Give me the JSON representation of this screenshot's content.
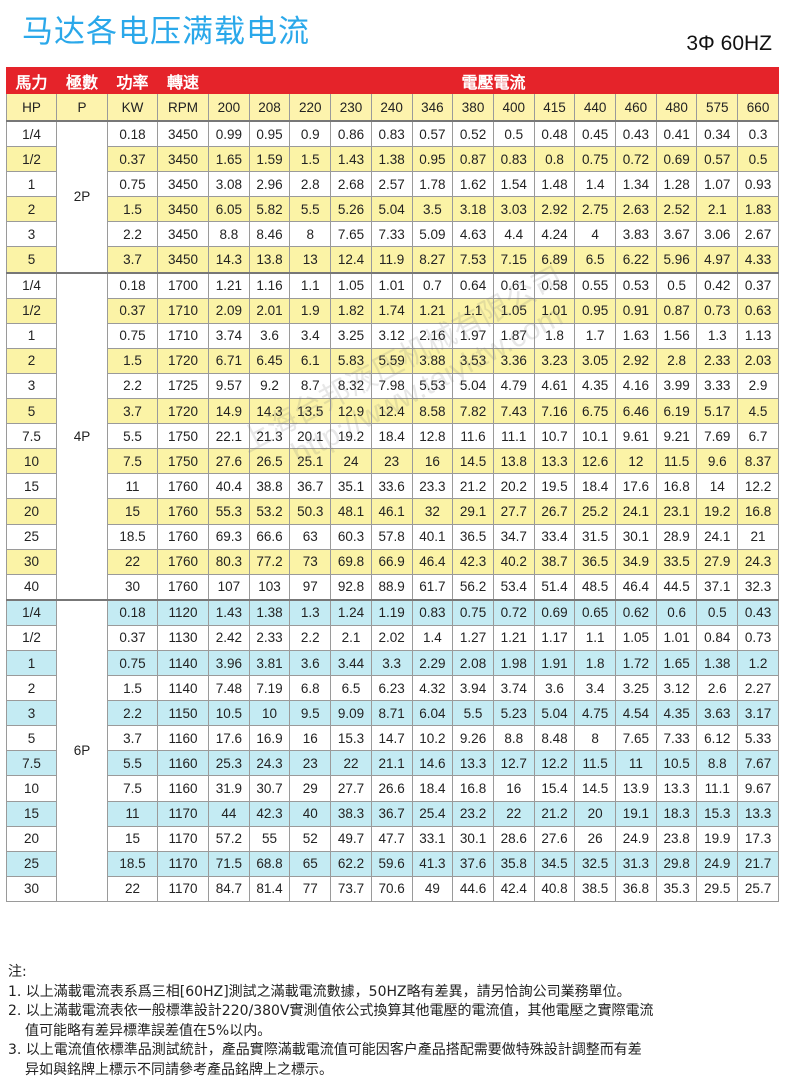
{
  "title": "马达各电压满载电流",
  "phase": "3Φ 60HZ",
  "colors": {
    "header_red": "#e5232a",
    "header_yellow": "#fdf3ad",
    "stripe_yellow": "#fbf3a6",
    "stripe_blue": "#c4ebf3",
    "title_blue": "#2aa8ea"
  },
  "header": {
    "hp": "馬力",
    "poles": "極數",
    "power": "功率",
    "speed": "轉速",
    "current": "電壓電流",
    "hp_unit": "HP",
    "poles_unit": "P",
    "power_unit": "KW",
    "speed_unit": "RPM",
    "voltages": [
      "200",
      "208",
      "220",
      "230",
      "240",
      "346",
      "380",
      "400",
      "415",
      "440",
      "460",
      "480",
      "575",
      "660"
    ]
  },
  "groups": [
    {
      "poles": "2P",
      "stripe_color": "#fbf3a6",
      "stripe_on": "odd",
      "rows": [
        [
          "1/4",
          "0.18",
          "3450",
          "0.99",
          "0.95",
          "0.9",
          "0.86",
          "0.83",
          "0.57",
          "0.52",
          "0.5",
          "0.48",
          "0.45",
          "0.43",
          "0.41",
          "0.34",
          "0.3"
        ],
        [
          "1/2",
          "0.37",
          "3450",
          "1.65",
          "1.59",
          "1.5",
          "1.43",
          "1.38",
          "0.95",
          "0.87",
          "0.83",
          "0.8",
          "0.75",
          "0.72",
          "0.69",
          "0.57",
          "0.5"
        ],
        [
          "1",
          "0.75",
          "3450",
          "3.08",
          "2.96",
          "2.8",
          "2.68",
          "2.57",
          "1.78",
          "1.62",
          "1.54",
          "1.48",
          "1.4",
          "1.34",
          "1.28",
          "1.07",
          "0.93"
        ],
        [
          "2",
          "1.5",
          "3450",
          "6.05",
          "5.82",
          "5.5",
          "5.26",
          "5.04",
          "3.5",
          "3.18",
          "3.03",
          "2.92",
          "2.75",
          "2.63",
          "2.52",
          "2.1",
          "1.83"
        ],
        [
          "3",
          "2.2",
          "3450",
          "8.8",
          "8.46",
          "8",
          "7.65",
          "7.33",
          "5.09",
          "4.63",
          "4.4",
          "4.24",
          "4",
          "3.83",
          "3.67",
          "3.06",
          "2.67"
        ],
        [
          "5",
          "3.7",
          "3450",
          "14.3",
          "13.8",
          "13",
          "12.4",
          "11.9",
          "8.27",
          "7.53",
          "7.15",
          "6.89",
          "6.5",
          "6.22",
          "5.96",
          "4.97",
          "4.33"
        ]
      ]
    },
    {
      "poles": "4P",
      "stripe_color": "#fbf3a6",
      "stripe_on": "odd",
      "rows": [
        [
          "1/4",
          "0.18",
          "1700",
          "1.21",
          "1.16",
          "1.1",
          "1.05",
          "1.01",
          "0.7",
          "0.64",
          "0.61",
          "0.58",
          "0.55",
          "0.53",
          "0.5",
          "0.42",
          "0.37"
        ],
        [
          "1/2",
          "0.37",
          "1710",
          "2.09",
          "2.01",
          "1.9",
          "1.82",
          "1.74",
          "1.21",
          "1.1",
          "1.05",
          "1.01",
          "0.95",
          "0.91",
          "0.87",
          "0.73",
          "0.63"
        ],
        [
          "1",
          "0.75",
          "1710",
          "3.74",
          "3.6",
          "3.4",
          "3.25",
          "3.12",
          "2.16",
          "1.97",
          "1.87",
          "1.8",
          "1.7",
          "1.63",
          "1.56",
          "1.3",
          "1.13"
        ],
        [
          "2",
          "1.5",
          "1720",
          "6.71",
          "6.45",
          "6.1",
          "5.83",
          "5.59",
          "3.88",
          "3.53",
          "3.36",
          "3.23",
          "3.05",
          "2.92",
          "2.8",
          "2.33",
          "2.03"
        ],
        [
          "3",
          "2.2",
          "1725",
          "9.57",
          "9.2",
          "8.7",
          "8.32",
          "7.98",
          "5.53",
          "5.04",
          "4.79",
          "4.61",
          "4.35",
          "4.16",
          "3.99",
          "3.33",
          "2.9"
        ],
        [
          "5",
          "3.7",
          "1720",
          "14.9",
          "14.3",
          "13.5",
          "12.9",
          "12.4",
          "8.58",
          "7.82",
          "7.43",
          "7.16",
          "6.75",
          "6.46",
          "6.19",
          "5.17",
          "4.5"
        ],
        [
          "7.5",
          "5.5",
          "1750",
          "22.1",
          "21.3",
          "20.1",
          "19.2",
          "18.4",
          "12.8",
          "11.6",
          "11.1",
          "10.7",
          "10.1",
          "9.61",
          "9.21",
          "7.69",
          "6.7"
        ],
        [
          "10",
          "7.5",
          "1750",
          "27.6",
          "26.5",
          "25.1",
          "24",
          "23",
          "16",
          "14.5",
          "13.8",
          "13.3",
          "12.6",
          "12",
          "11.5",
          "9.6",
          "8.37"
        ],
        [
          "15",
          "11",
          "1760",
          "40.4",
          "38.8",
          "36.7",
          "35.1",
          "33.6",
          "23.3",
          "21.2",
          "20.2",
          "19.5",
          "18.4",
          "17.6",
          "16.8",
          "14",
          "12.2"
        ],
        [
          "20",
          "15",
          "1760",
          "55.3",
          "53.2",
          "50.3",
          "48.1",
          "46.1",
          "32",
          "29.1",
          "27.7",
          "26.7",
          "25.2",
          "24.1",
          "23.1",
          "19.2",
          "16.8"
        ],
        [
          "25",
          "18.5",
          "1760",
          "69.3",
          "66.6",
          "63",
          "60.3",
          "57.8",
          "40.1",
          "36.5",
          "34.7",
          "33.4",
          "31.5",
          "30.1",
          "28.9",
          "24.1",
          "21"
        ],
        [
          "30",
          "22",
          "1760",
          "80.3",
          "77.2",
          "73",
          "69.8",
          "66.9",
          "46.4",
          "42.3",
          "40.2",
          "38.7",
          "36.5",
          "34.9",
          "33.5",
          "27.9",
          "24.3"
        ],
        [
          "40",
          "30",
          "1760",
          "107",
          "103",
          "97",
          "92.8",
          "88.9",
          "61.7",
          "56.2",
          "53.4",
          "51.4",
          "48.5",
          "46.4",
          "44.5",
          "37.1",
          "32.3"
        ]
      ]
    },
    {
      "poles": "6P",
      "stripe_color": "#c4ebf3",
      "stripe_on": "even",
      "rows": [
        [
          "1/4",
          "0.18",
          "1120",
          "1.43",
          "1.38",
          "1.3",
          "1.24",
          "1.19",
          "0.83",
          "0.75",
          "0.72",
          "0.69",
          "0.65",
          "0.62",
          "0.6",
          "0.5",
          "0.43"
        ],
        [
          "1/2",
          "0.37",
          "1130",
          "2.42",
          "2.33",
          "2.2",
          "2.1",
          "2.02",
          "1.4",
          "1.27",
          "1.21",
          "1.17",
          "1.1",
          "1.05",
          "1.01",
          "0.84",
          "0.73"
        ],
        [
          "1",
          "0.75",
          "1140",
          "3.96",
          "3.81",
          "3.6",
          "3.44",
          "3.3",
          "2.29",
          "2.08",
          "1.98",
          "1.91",
          "1.8",
          "1.72",
          "1.65",
          "1.38",
          "1.2"
        ],
        [
          "2",
          "1.5",
          "1140",
          "7.48",
          "7.19",
          "6.8",
          "6.5",
          "6.23",
          "4.32",
          "3.94",
          "3.74",
          "3.6",
          "3.4",
          "3.25",
          "3.12",
          "2.6",
          "2.27"
        ],
        [
          "3",
          "2.2",
          "1150",
          "10.5",
          "10",
          "9.5",
          "9.09",
          "8.71",
          "6.04",
          "5.5",
          "5.23",
          "5.04",
          "4.75",
          "4.54",
          "4.35",
          "3.63",
          "3.17"
        ],
        [
          "5",
          "3.7",
          "1160",
          "17.6",
          "16.9",
          "16",
          "15.3",
          "14.7",
          "10.2",
          "9.26",
          "8.8",
          "8.48",
          "8",
          "7.65",
          "7.33",
          "6.12",
          "5.33"
        ],
        [
          "7.5",
          "5.5",
          "1160",
          "25.3",
          "24.3",
          "23",
          "22",
          "21.1",
          "14.6",
          "13.3",
          "12.7",
          "12.2",
          "11.5",
          "11",
          "10.5",
          "8.8",
          "7.67"
        ],
        [
          "10",
          "7.5",
          "1160",
          "31.9",
          "30.7",
          "29",
          "27.7",
          "26.6",
          "18.4",
          "16.8",
          "16",
          "15.4",
          "14.5",
          "13.9",
          "13.3",
          "11.1",
          "9.67"
        ],
        [
          "15",
          "11",
          "1170",
          "44",
          "42.3",
          "40",
          "38.3",
          "36.7",
          "25.4",
          "23.2",
          "22",
          "21.2",
          "20",
          "19.1",
          "18.3",
          "15.3",
          "13.3"
        ],
        [
          "20",
          "15",
          "1170",
          "57.2",
          "55",
          "52",
          "49.7",
          "47.7",
          "33.1",
          "30.1",
          "28.6",
          "27.6",
          "26",
          "24.9",
          "23.8",
          "19.9",
          "17.3"
        ],
        [
          "25",
          "18.5",
          "1170",
          "71.5",
          "68.8",
          "65",
          "62.2",
          "59.6",
          "41.3",
          "37.6",
          "35.8",
          "34.5",
          "32.5",
          "31.3",
          "29.8",
          "24.9",
          "21.7"
        ],
        [
          "30",
          "22",
          "1170",
          "84.7",
          "81.4",
          "77",
          "73.7",
          "70.6",
          "49",
          "44.6",
          "42.4",
          "40.8",
          "38.5",
          "36.8",
          "35.3",
          "29.5",
          "25.7"
        ]
      ]
    }
  ],
  "watermark": {
    "line1": "上海台邦液压机械有限公司",
    "line2": "http://www.taiyktw.com"
  },
  "notes": {
    "heading": "注:",
    "n1": "1. 以上滿載電流表系爲三相[60HZ]測試之滿載電流數據，50HZ略有差異，請另恰詢公司業務單位。",
    "n2a": "2. 以上滿載電流表依一般標準設計220/380V實測值依公式換算其他電壓的電流值，其他電壓之實際電流",
    "n2b": "值可能略有差异標準誤差值在5%以内。",
    "n3a": "3. 以上電流值依標準品測試統計，產品實際滿載電流值可能因客户產品搭配需要做特殊設計調整而有差",
    "n3b": "异如與銘牌上標示不同請參考產品銘牌上之標示。"
  }
}
